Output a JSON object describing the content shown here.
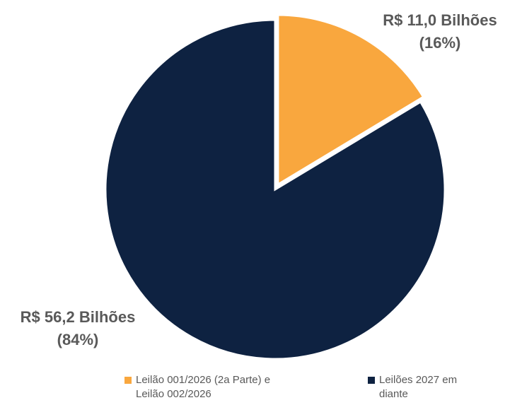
{
  "chart_data": {
    "type": "pie",
    "categories": [
      "Leilão 001/2026 (2a Parte) e Leilão 002/2026",
      "Leilões 2027 em diante"
    ],
    "values": [
      11.0,
      56.2
    ],
    "value_labels": [
      [
        "R$ 11,0 Bilhões",
        "(16%)"
      ],
      [
        "R$ 56,2 Bilhões",
        "(84%)"
      ]
    ],
    "colors": [
      "#f9a73e",
      "#0e2241"
    ],
    "legend": "bottom"
  }
}
